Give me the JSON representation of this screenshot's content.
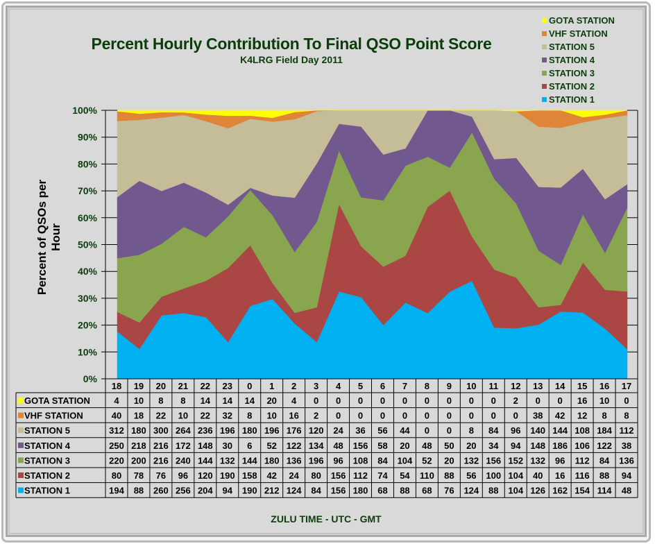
{
  "chart_data": {
    "type": "area",
    "stacked": "percent",
    "title": "Percent Hourly Contribution To Final QSO Point Score",
    "subtitle": "K4LRG Field Day 2011",
    "xlabel": "ZULU TIME  -  UTC  -  GMT",
    "ylabel": "Percent of  QSOs per Hour",
    "ylim": [
      0,
      100
    ],
    "yticks": [
      "0%",
      "10%",
      "20%",
      "30%",
      "40%",
      "50%",
      "60%",
      "70%",
      "80%",
      "90%",
      "100%"
    ],
    "categories": [
      "18",
      "19",
      "20",
      "21",
      "22",
      "23",
      "0",
      "1",
      "2",
      "3",
      "4",
      "5",
      "6",
      "7",
      "8",
      "9",
      "10",
      "11",
      "12",
      "13",
      "14",
      "15",
      "16",
      "17"
    ],
    "legend_position": "top-right",
    "series": [
      {
        "name": "STATION 1",
        "color": "#00b0f0",
        "values": [
          194,
          88,
          260,
          256,
          204,
          94,
          190,
          212,
          124,
          84,
          156,
          180,
          68,
          88,
          68,
          76,
          124,
          88,
          104,
          126,
          162,
          154,
          114,
          48
        ]
      },
      {
        "name": "STATION 2",
        "color": "#aa4643",
        "values": [
          80,
          78,
          76,
          96,
          120,
          190,
          158,
          42,
          24,
          80,
          156,
          112,
          74,
          54,
          110,
          88,
          56,
          100,
          104,
          40,
          16,
          116,
          88,
          94
        ]
      },
      {
        "name": "STATION 3",
        "color": "#89a54e",
        "values": [
          220,
          200,
          216,
          240,
          144,
          132,
          144,
          180,
          136,
          196,
          96,
          108,
          84,
          104,
          52,
          20,
          132,
          156,
          152,
          132,
          96,
          112,
          84,
          136
        ]
      },
      {
        "name": "STATION 4",
        "color": "#71588f",
        "values": [
          250,
          218,
          216,
          172,
          148,
          30,
          6,
          52,
          122,
          134,
          48,
          156,
          58,
          20,
          48,
          50,
          20,
          34,
          94,
          148,
          186,
          106,
          122,
          38
        ]
      },
      {
        "name": "STATION 5",
        "color": "#c4bd97",
        "values": [
          312,
          180,
          300,
          264,
          236,
          196,
          180,
          196,
          176,
          120,
          24,
          36,
          56,
          44,
          0,
          0,
          8,
          84,
          96,
          140,
          144,
          108,
          184,
          112
        ]
      },
      {
        "name": "VHF STATION",
        "color": "#e0843a",
        "values": [
          40,
          18,
          22,
          10,
          22,
          32,
          8,
          10,
          16,
          2,
          0,
          0,
          0,
          0,
          0,
          0,
          0,
          0,
          0,
          38,
          42,
          12,
          8,
          8
        ]
      },
      {
        "name": "GOTA STATION",
        "color": "#ffff00",
        "values": [
          4,
          10,
          8,
          8,
          14,
          14,
          14,
          20,
          4,
          0,
          0,
          0,
          0,
          0,
          0,
          0,
          0,
          0,
          2,
          0,
          0,
          16,
          10,
          0
        ]
      }
    ]
  }
}
